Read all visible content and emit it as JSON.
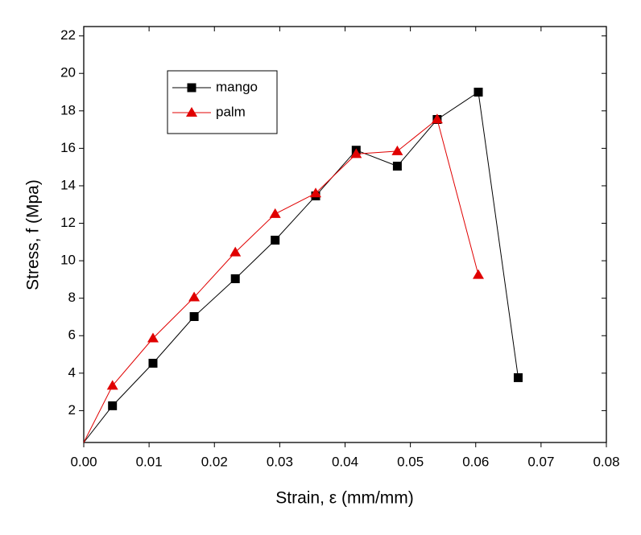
{
  "chart_data": {
    "type": "line",
    "x_label": "Strain, ε (mm/mm)",
    "y_label": "Stress, f (Mpa)",
    "xlim": [
      0,
      0.08
    ],
    "ylim": [
      0.3,
      22.5
    ],
    "xticks": [
      {
        "value": 0,
        "label": "0.00"
      },
      0.01,
      0.02,
      0.03,
      0.04,
      0.05,
      0.06,
      0.07,
      0.08
    ],
    "yticks": [
      2,
      4,
      6,
      8,
      10,
      12,
      14,
      16,
      18,
      20,
      22
    ],
    "legend": "upper left",
    "series": [
      {
        "name": "mango",
        "color": "#000000",
        "marker": "square",
        "x": [
          0,
          0.0044,
          0.0106,
          0.0169,
          0.0232,
          0.0293,
          0.0355,
          0.0417,
          0.048,
          0.0541,
          0.0604,
          0.0665
        ],
        "values": [
          0.3,
          2.26,
          4.53,
          7.02,
          9.04,
          11.1,
          13.46,
          15.9,
          15.05,
          17.54,
          19.0,
          3.76
        ]
      },
      {
        "name": "palm",
        "color": "#e00000",
        "marker": "triangle",
        "x": [
          0,
          0.0044,
          0.0106,
          0.0169,
          0.0232,
          0.0293,
          0.0355,
          0.0417,
          0.048,
          0.0541,
          0.0604
        ],
        "values": [
          0.3,
          3.33,
          5.86,
          8.05,
          10.45,
          12.5,
          13.6,
          15.7,
          15.85,
          17.55,
          9.25
        ]
      }
    ]
  }
}
